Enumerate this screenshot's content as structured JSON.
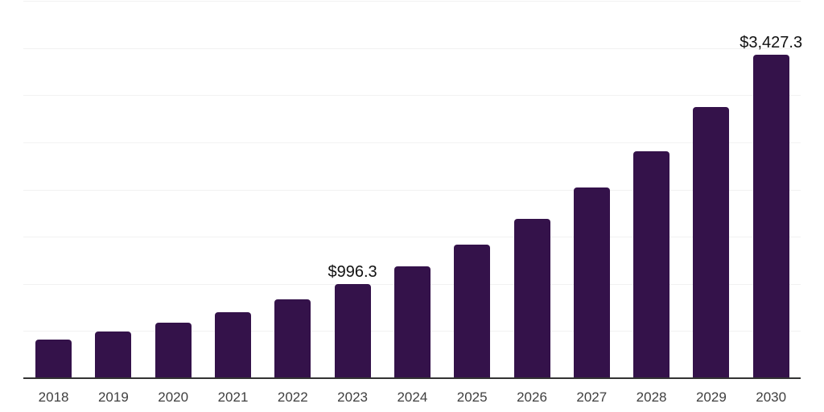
{
  "chart_data": {
    "type": "bar",
    "title": "",
    "xlabel": "",
    "ylabel": "",
    "categories": [
      "2018",
      "2019",
      "2020",
      "2021",
      "2022",
      "2023",
      "2024",
      "2025",
      "2026",
      "2027",
      "2028",
      "2029",
      "2030"
    ],
    "values": [
      412,
      492,
      587,
      700,
      835,
      996.3,
      1189,
      1418,
      1692,
      2018,
      2408,
      2873,
      3427.3
    ],
    "ylim": [
      0,
      4000
    ],
    "grid_step": 500,
    "grid": true,
    "legend": false,
    "y_tick_labels_visible": false,
    "annotations": [
      {
        "category": "2023",
        "text": "$996.3"
      },
      {
        "category": "2030",
        "text": "$3,427.3"
      }
    ],
    "colors": {
      "bar": "#34124a",
      "gridline": "#f2f2f2",
      "axis": "#333333",
      "tick_label": "#3f3f3f",
      "data_label": "#111111",
      "background": "#ffffff"
    }
  }
}
